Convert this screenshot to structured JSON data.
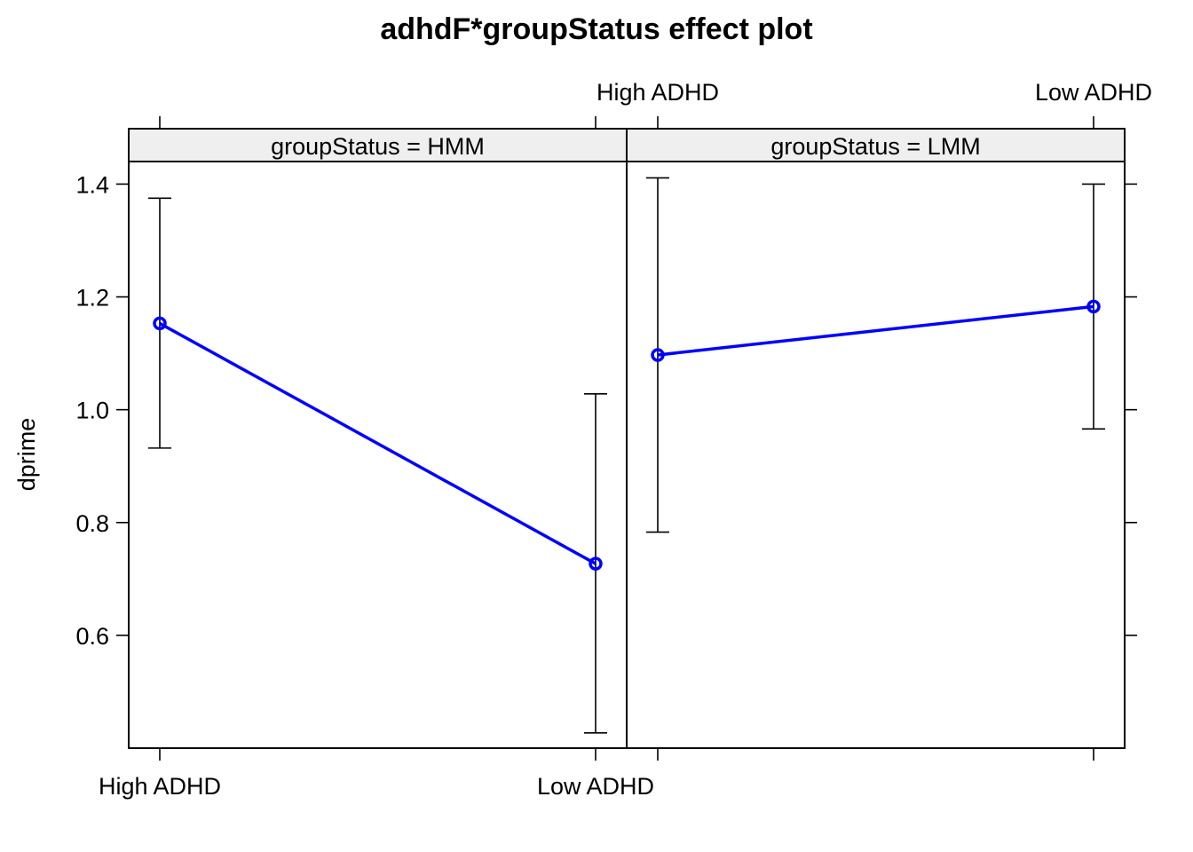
{
  "chart_data": {
    "type": "line",
    "title": "adhdF*groupStatus effect plot",
    "ylabel": "dprime",
    "categories": [
      "High ADHD",
      "Low ADHD"
    ],
    "ylim": [
      0.4,
      1.44
    ],
    "yticks": [
      0.6,
      0.8,
      1.0,
      1.2,
      1.4
    ],
    "ytick_labels": [
      "0.6",
      "0.8",
      "1.0",
      "1.2",
      "1.4"
    ],
    "line_color": "#0000ff",
    "panels": [
      {
        "strip_label": "groupStatus = HMM",
        "x_labels": [
          "High ADHD",
          "Low ADHD"
        ],
        "values": [
          1.153,
          0.727
        ],
        "lower": [
          0.932,
          0.427
        ],
        "upper": [
          1.375,
          1.028
        ]
      },
      {
        "strip_label": "groupStatus = LMM",
        "x_labels": [
          "High ADHD",
          "Low ADHD"
        ],
        "values": [
          1.097,
          1.183
        ],
        "lower": [
          0.783,
          0.966
        ],
        "upper": [
          1.411,
          1.4
        ]
      }
    ]
  }
}
